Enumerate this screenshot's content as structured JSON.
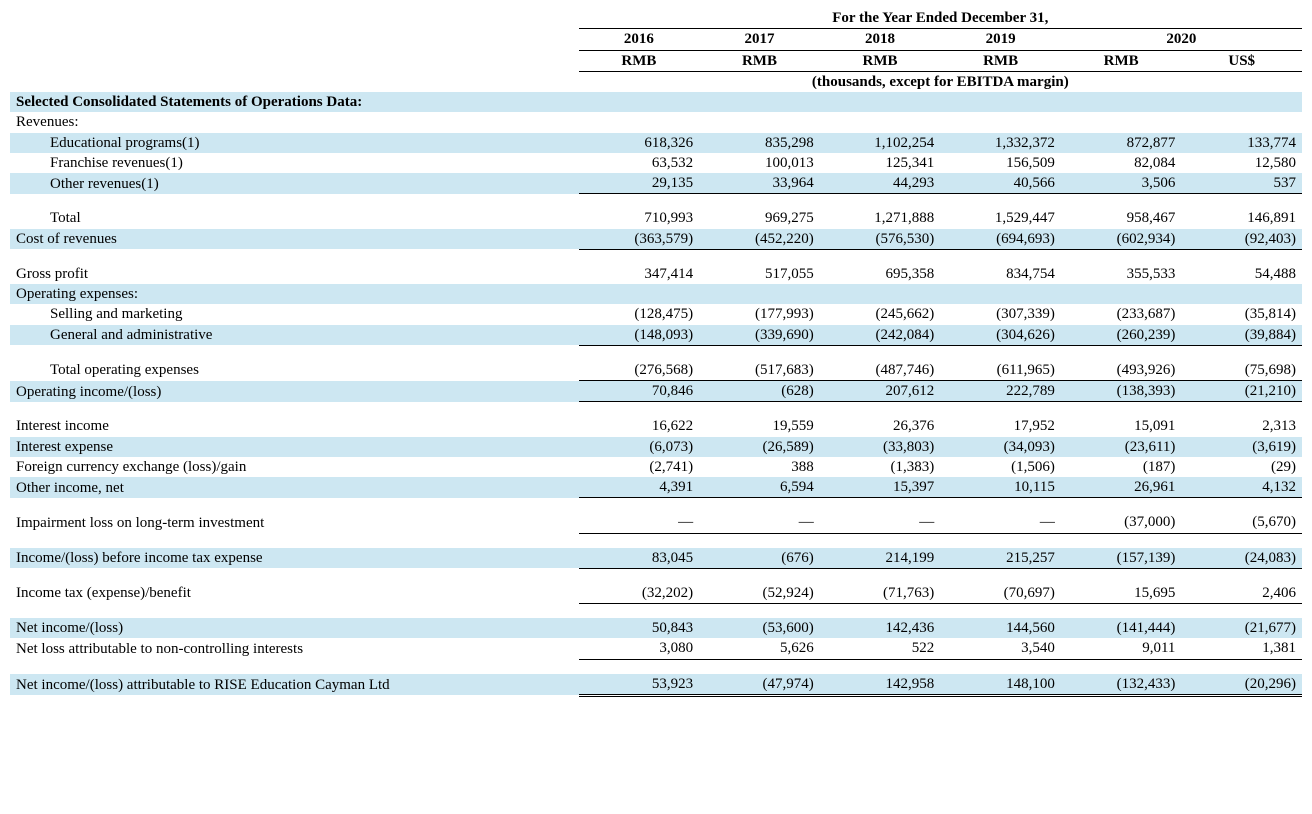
{
  "header": {
    "super": "For the Year Ended December 31,",
    "years": [
      "2016",
      "2017",
      "2018",
      "2019"
    ],
    "year_2020": "2020",
    "currencies": [
      "RMB",
      "RMB",
      "RMB",
      "RMB",
      "RMB",
      "US$"
    ],
    "subnote": "(thousands, except for EBITDA margin)"
  },
  "section_title": "Selected Consolidated Statements of Operations Data:",
  "rows": {
    "revenues_label": "Revenues:",
    "edu": {
      "label": "Educational programs(1)",
      "v": [
        "618,326",
        "835,298",
        "1,102,254",
        "1,332,372",
        "872,877",
        "133,774"
      ]
    },
    "fran": {
      "label": "Franchise revenues(1)",
      "v": [
        "63,532",
        "100,013",
        "125,341",
        "156,509",
        "82,084",
        "12,580"
      ]
    },
    "other": {
      "label": "Other revenues(1)",
      "v": [
        "29,135",
        "33,964",
        "44,293",
        "40,566",
        "3,506",
        "537"
      ]
    },
    "total_rev": {
      "label": "Total",
      "v": [
        "710,993",
        "969,275",
        "1,271,888",
        "1,529,447",
        "958,467",
        "146,891"
      ]
    },
    "cost_rev": {
      "label": "Cost of revenues",
      "v": [
        "(363,579)",
        "(452,220)",
        "(576,530)",
        "(694,693)",
        "(602,934)",
        "(92,403)"
      ]
    },
    "gross": {
      "label": "Gross profit",
      "v": [
        "347,414",
        "517,055",
        "695,358",
        "834,754",
        "355,533",
        "54,488"
      ]
    },
    "opex_label": "Operating expenses:",
    "sell": {
      "label": "Selling and marketing",
      "v": [
        "(128,475)",
        "(177,993)",
        "(245,662)",
        "(307,339)",
        "(233,687)",
        "(35,814)"
      ]
    },
    "ga": {
      "label": "General and administrative",
      "v": [
        "(148,093)",
        "(339,690)",
        "(242,084)",
        "(304,626)",
        "(260,239)",
        "(39,884)"
      ]
    },
    "total_opex": {
      "label": "Total operating expenses",
      "v": [
        "(276,568)",
        "(517,683)",
        "(487,746)",
        "(611,965)",
        "(493,926)",
        "(75,698)"
      ]
    },
    "op_inc": {
      "label": "Operating income/(loss)",
      "v": [
        "70,846",
        "(628)",
        "207,612",
        "222,789",
        "(138,393)",
        "(21,210)"
      ]
    },
    "int_inc": {
      "label": "Interest income",
      "v": [
        "16,622",
        "19,559",
        "26,376",
        "17,952",
        "15,091",
        "2,313"
      ]
    },
    "int_exp": {
      "label": "Interest expense",
      "v": [
        "(6,073)",
        "(26,589)",
        "(33,803)",
        "(34,093)",
        "(23,611)",
        "(3,619)"
      ]
    },
    "fx": {
      "label": "Foreign currency exchange (loss)/gain",
      "v": [
        "(2,741)",
        "388",
        "(1,383)",
        "(1,506)",
        "(187)",
        "(29)"
      ]
    },
    "oth_inc": {
      "label": "Other income, net",
      "v": [
        "4,391",
        "6,594",
        "15,397",
        "10,115",
        "26,961",
        "4,132"
      ]
    },
    "impair": {
      "label": "Impairment loss on long-term investment",
      "v": [
        "—",
        "—",
        "—",
        "—",
        "(37,000)",
        "(5,670)"
      ]
    },
    "pretax": {
      "label": "Income/(loss) before income tax expense",
      "v": [
        "83,045",
        "(676)",
        "214,199",
        "215,257",
        "(157,139)",
        "(24,083)"
      ]
    },
    "tax": {
      "label": "Income tax (expense)/benefit",
      "v": [
        "(32,202)",
        "(52,924)",
        "(71,763)",
        "(70,697)",
        "15,695",
        "2,406"
      ]
    },
    "net": {
      "label": "Net income/(loss)",
      "v": [
        "50,843",
        "(53,600)",
        "142,436",
        "144,560",
        "(141,444)",
        "(21,677)"
      ]
    },
    "nci": {
      "label": "Net loss attributable to non-controlling interests",
      "v": [
        "3,080",
        "5,626",
        "522",
        "3,540",
        "9,011",
        "1,381"
      ]
    },
    "attr": {
      "label": "Net income/(loss) attributable to RISE Education Cayman Ltd",
      "v": [
        "53,923",
        "(47,974)",
        "142,958",
        "148,100",
        "(132,433)",
        "(20,296)"
      ]
    }
  },
  "style": {
    "highlight_color": "#cde7f2",
    "text_color": "#000000",
    "font_family": "Times New Roman",
    "font_size_pt": 11
  }
}
